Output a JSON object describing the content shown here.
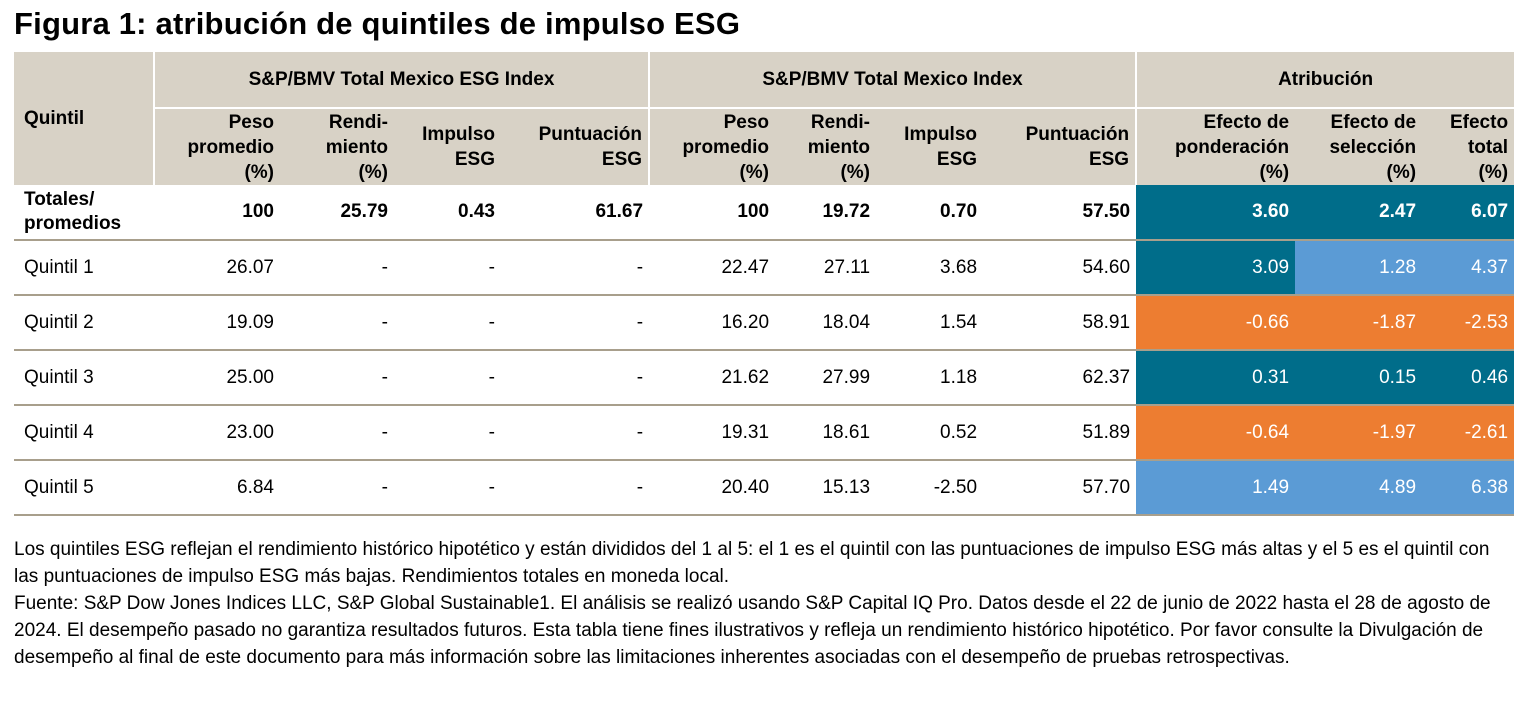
{
  "title": "Figura 1: atribución de quintiles de impulso ESG",
  "colors": {
    "header_bg": "#d8d2c6",
    "dark_teal": "#006d8a",
    "light_blue": "#5b9bd5",
    "orange": "#ed7d31"
  },
  "header": {
    "quintil": "Quintil",
    "group_esg": "S&P/BMV Total Mexico ESG Index",
    "group_total": "S&P/BMV Total Mexico Index",
    "group_attr": "Atribución",
    "peso": [
      "Peso",
      "promedio",
      "(%)"
    ],
    "rend": [
      "Rendi-",
      "miento",
      "(%)"
    ],
    "impulso": [
      "Impulso",
      "ESG"
    ],
    "puntuacion": [
      "Puntuación",
      "ESG"
    ],
    "efecto_pond": [
      "Efecto de",
      "ponderación",
      "(%)"
    ],
    "efecto_sel": [
      "Efecto de",
      "selección",
      "(%)"
    ],
    "efecto_tot": [
      "Efecto",
      "total",
      "(%)"
    ]
  },
  "rows": [
    {
      "label": [
        "Totales/",
        "promedios"
      ],
      "esg": [
        "100",
        "25.79",
        "0.43",
        "61.67"
      ],
      "total": [
        "100",
        "19.72",
        "0.70",
        "57.50"
      ],
      "attr": [
        "3.60",
        "2.47",
        "6.07"
      ],
      "attr_colors": [
        "#006d8a",
        "#006d8a",
        "#006d8a"
      ]
    },
    {
      "label": [
        "Quintil 1"
      ],
      "esg": [
        "26.07",
        "-",
        "-",
        "-"
      ],
      "total": [
        "22.47",
        "27.11",
        "3.68",
        "54.60"
      ],
      "attr": [
        "3.09",
        "1.28",
        "4.37"
      ],
      "attr_colors": [
        "#006d8a",
        "#5b9bd5",
        "#5b9bd5"
      ]
    },
    {
      "label": [
        "Quintil 2"
      ],
      "esg": [
        "19.09",
        "-",
        "-",
        "-"
      ],
      "total": [
        "16.20",
        "18.04",
        "1.54",
        "58.91"
      ],
      "attr": [
        "-0.66",
        "-1.87",
        "-2.53"
      ],
      "attr_colors": [
        "#ed7d31",
        "#ed7d31",
        "#ed7d31"
      ]
    },
    {
      "label": [
        "Quintil 3"
      ],
      "esg": [
        "25.00",
        "-",
        "-",
        "-"
      ],
      "total": [
        "21.62",
        "27.99",
        "1.18",
        "62.37"
      ],
      "attr": [
        "0.31",
        "0.15",
        "0.46"
      ],
      "attr_colors": [
        "#006d8a",
        "#006d8a",
        "#006d8a"
      ]
    },
    {
      "label": [
        "Quintil 4"
      ],
      "esg": [
        "23.00",
        "-",
        "-",
        "-"
      ],
      "total": [
        "19.31",
        "18.61",
        "0.52",
        "51.89"
      ],
      "attr": [
        "-0.64",
        "-1.97",
        "-2.61"
      ],
      "attr_colors": [
        "#ed7d31",
        "#ed7d31",
        "#ed7d31"
      ]
    },
    {
      "label": [
        "Quintil 5"
      ],
      "esg": [
        "6.84",
        "-",
        "-",
        "-"
      ],
      "total": [
        "20.40",
        "15.13",
        "-2.50",
        "57.70"
      ],
      "attr": [
        "1.49",
        "4.89",
        "6.38"
      ],
      "attr_colors": [
        "#5b9bd5",
        "#5b9bd5",
        "#5b9bd5"
      ]
    }
  ],
  "footnote": {
    "p1": "Los quintiles ESG reflejan el rendimiento histórico hipotético y están divididos del 1 al 5: el 1 es el quintil con las puntuaciones de impulso ESG más altas y el 5 es el quintil con las puntuaciones de impulso ESG más bajas. Rendimientos totales en moneda local.",
    "p2": "Fuente: S&P Dow Jones Indices LLC, S&P Global Sustainable1. El análisis se realizó usando S&P Capital IQ Pro. Datos desde el 22 de junio de 2022 hasta el 28 de agosto de 2024. El desempeño pasado no garantiza resultados futuros. Esta tabla tiene fines ilustrativos y refleja un rendimiento histórico hipotético. Por favor consulte la Divulgación de desempeño al final de este documento para más información sobre las limitaciones inherentes asociadas con el desempeño de pruebas retrospectivas."
  }
}
